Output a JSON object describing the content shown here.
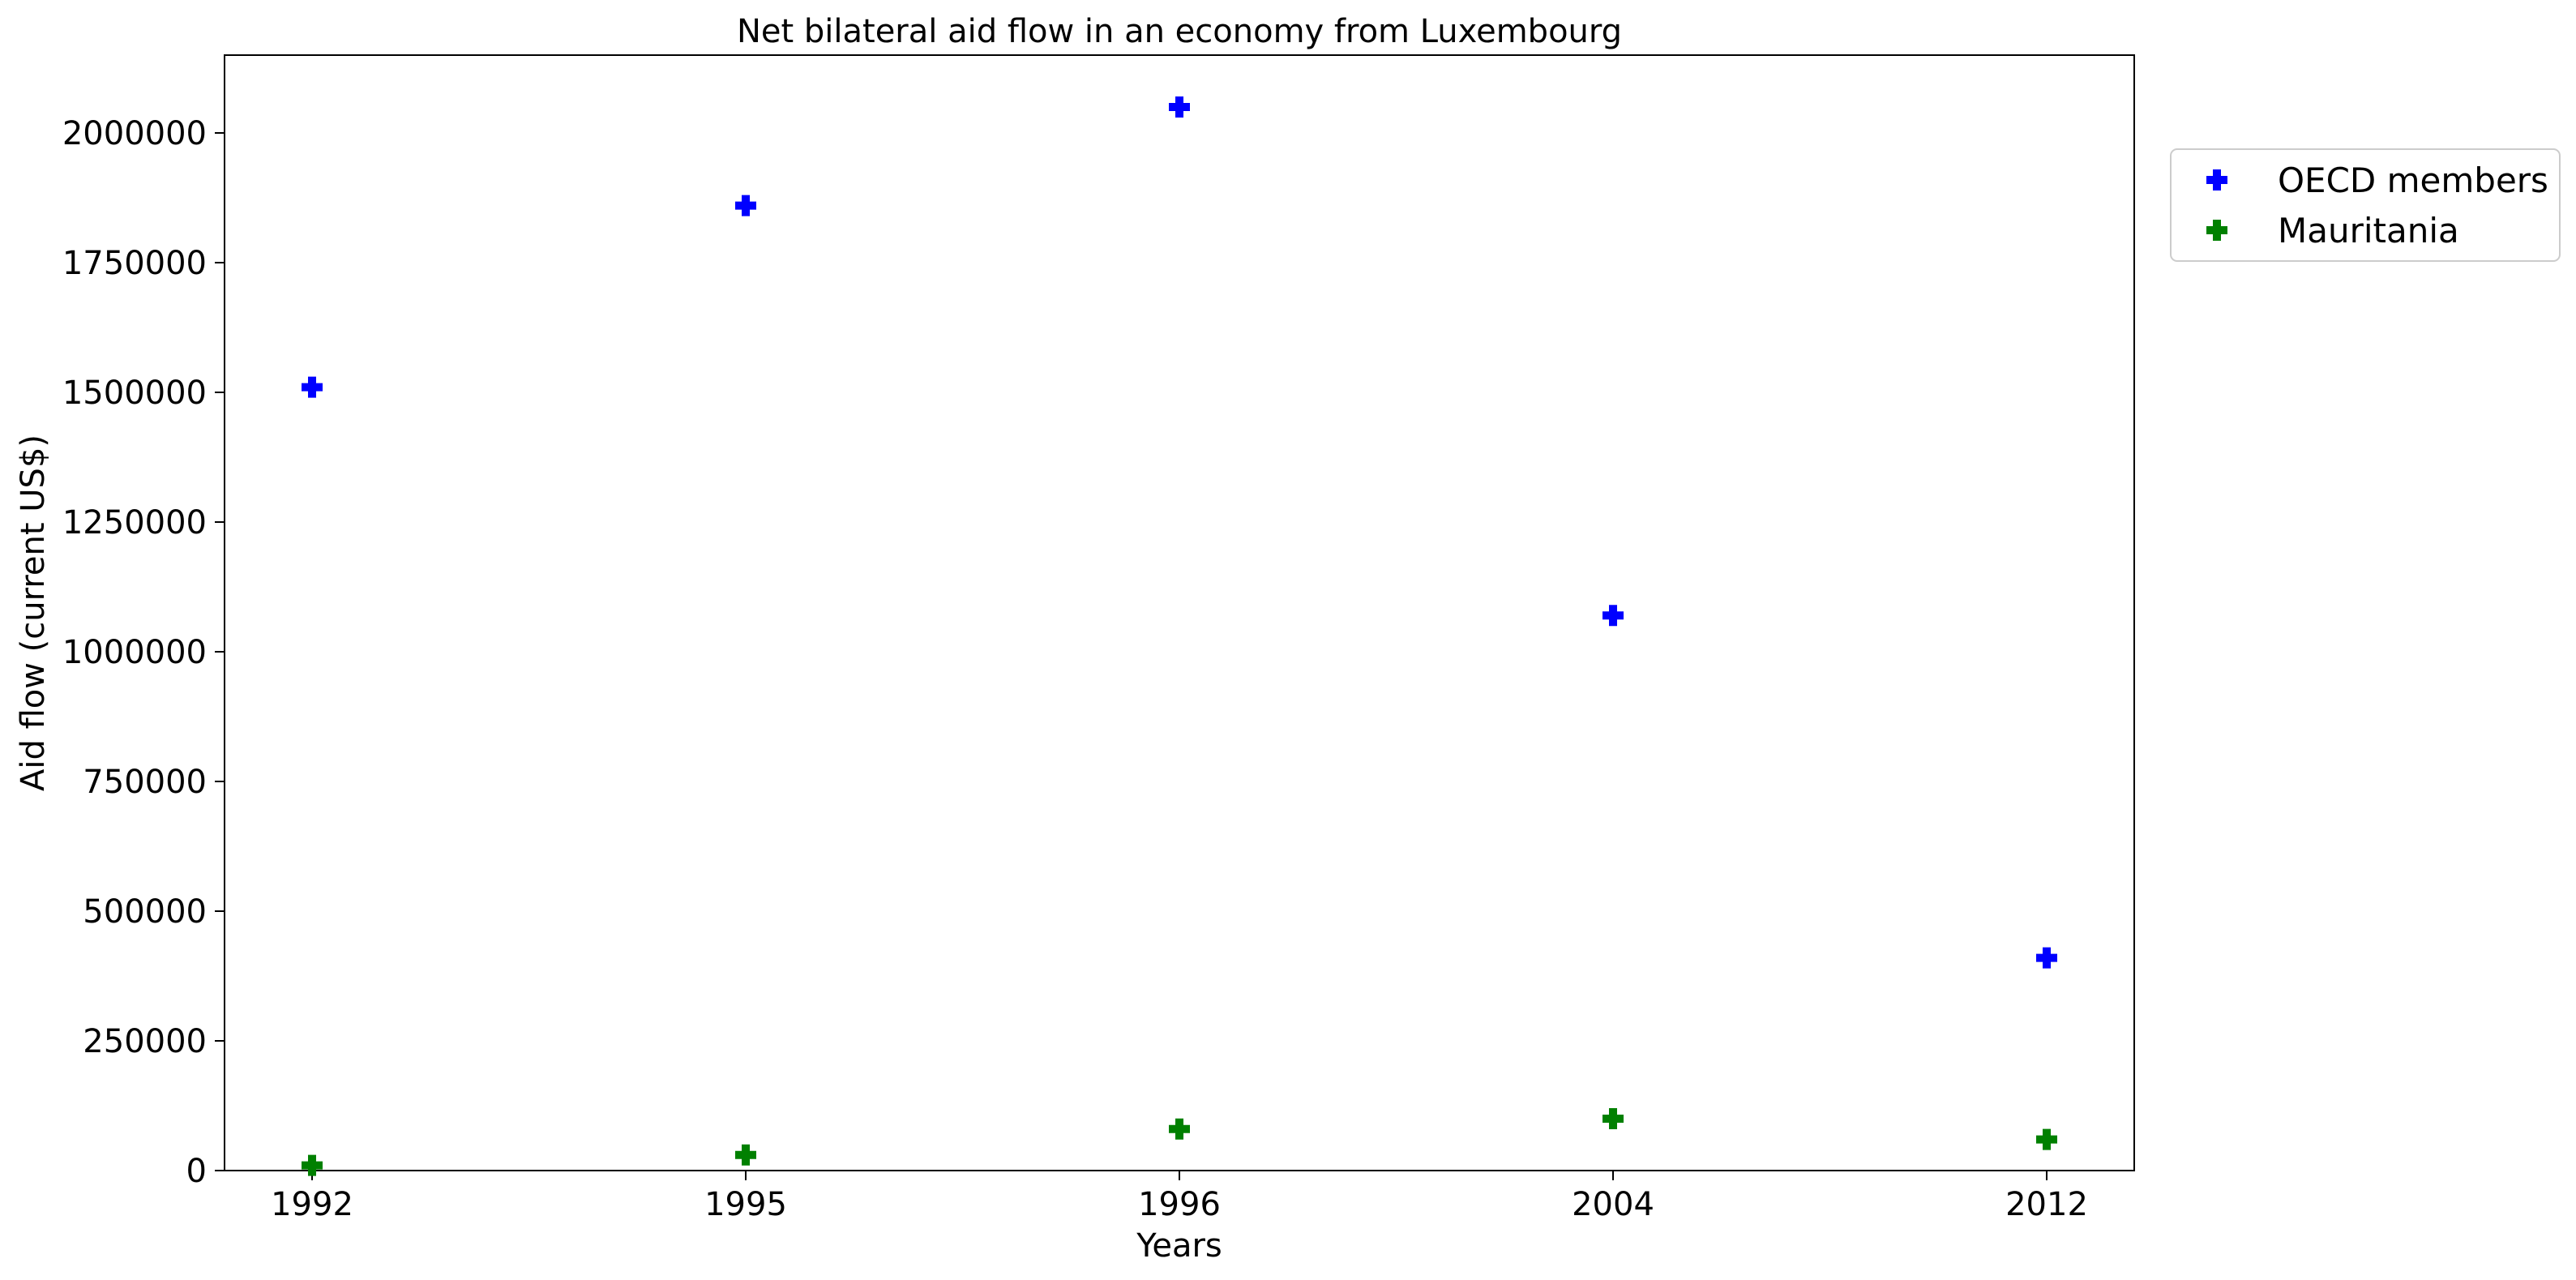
{
  "chart_data": {
    "type": "scatter",
    "title": "Net bilateral aid flow in an economy from Luxembourg",
    "xlabel": "Years",
    "ylabel": "Aid flow (current US$)",
    "categories": [
      "1992",
      "1995",
      "1996",
      "2004",
      "2012"
    ],
    "ylim": [
      0,
      2150000
    ],
    "yticks": [
      0,
      250000,
      500000,
      750000,
      1000000,
      1250000,
      1500000,
      1750000,
      2000000
    ],
    "grid": false,
    "legend_position": "outside top-right",
    "marker": "plus (filled)",
    "series": [
      {
        "name": "OECD members",
        "color": "#0000ff",
        "values": [
          1510000,
          1860000,
          2050000,
          1070000,
          410000
        ]
      },
      {
        "name": "Mauritania",
        "color": "#008000",
        "values": [
          10000,
          30000,
          80000,
          100000,
          60000
        ]
      }
    ]
  }
}
